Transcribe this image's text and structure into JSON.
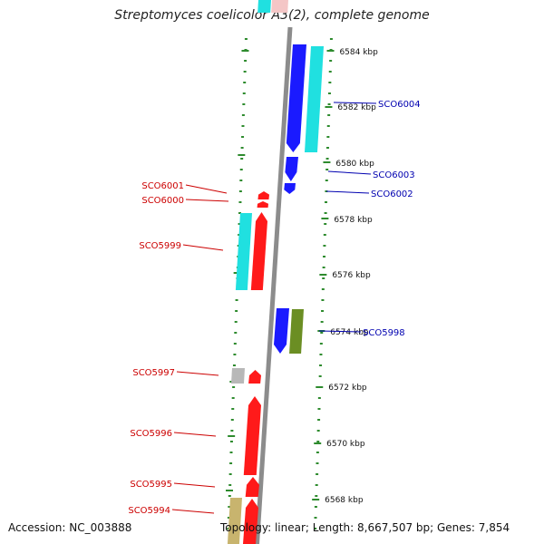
{
  "title": "Streptomyces coelicolor A3(2), complete genome",
  "accession": "Accession: NC_003888",
  "summary": "Topology: linear; Length: 8,667,507 bp; Genes: 7,854",
  "colors": {
    "backbone": "#8c8c8c",
    "tick": "#2e8b2e",
    "forward_label": "#cc0000",
    "reverse_label": "#0000b0",
    "red": "#ff1a1a",
    "blue": "#1a1aff",
    "cyan": "#20e0e0",
    "olive": "#6b8e23",
    "gray": "#b8b8b8",
    "khaki": "#c8b46e"
  },
  "scale_labels": [
    "6584 kbp",
    "6582 kbp",
    "6580 kbp",
    "6578 kbp",
    "6576 kbp",
    "6574 kbp",
    "6572 kbp",
    "6570 kbp",
    "6568 kbp"
  ],
  "forward_genes": [
    "SCO6001",
    "SCO6000",
    "SCO5999",
    "SCO5997",
    "SCO5996",
    "SCO5995",
    "SCO5994"
  ],
  "reverse_genes": [
    "SCO6004",
    "SCO6003",
    "SCO6002",
    "SCO5998"
  ]
}
